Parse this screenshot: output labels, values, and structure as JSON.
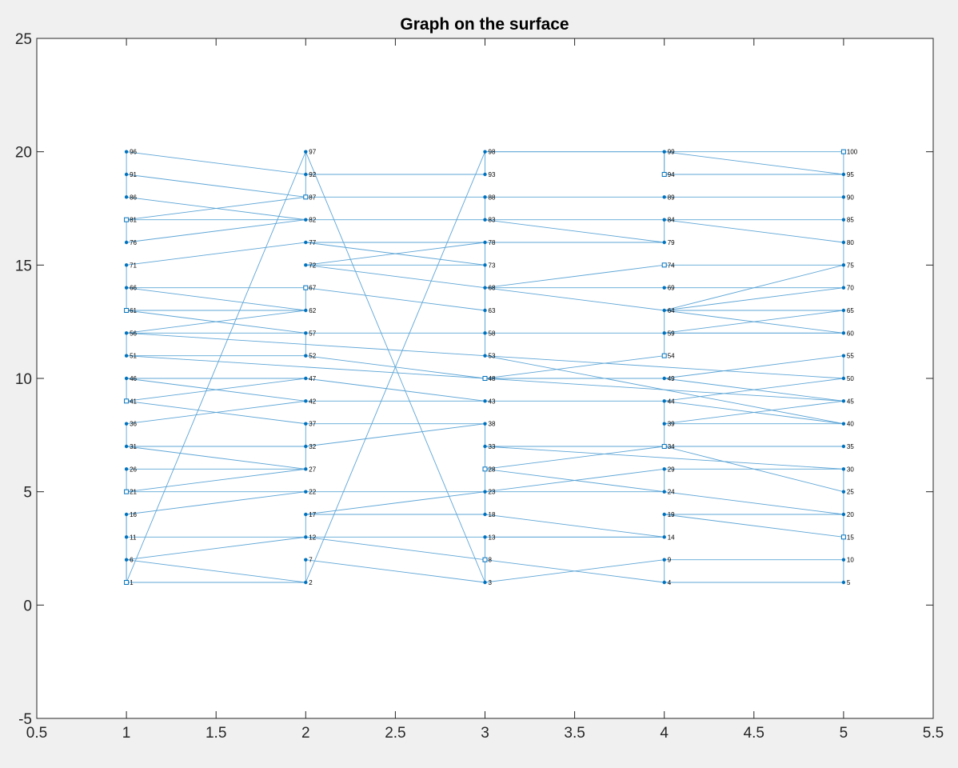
{
  "colors": {
    "figure_background": "#f0f0f0",
    "axes_background": "#ffffff",
    "axis_color": "#262626",
    "edge_color": "#5da5d6",
    "node_color": "#0072bd"
  },
  "chart_data": {
    "type": "scatter",
    "title": "Graph on the surface",
    "xlabel": "",
    "ylabel": "",
    "xlim": [
      0.5,
      5.5
    ],
    "ylim": [
      -5,
      25
    ],
    "xticks": [
      0.5,
      1,
      1.5,
      2,
      2.5,
      3,
      3.5,
      4,
      4.5,
      5,
      5.5
    ],
    "xtick_labels": [
      "0.5",
      "1",
      "1.5",
      "2",
      "2.5",
      "3",
      "3.5",
      "4",
      "4.5",
      "5",
      "5.5"
    ],
    "yticks": [
      -5,
      0,
      5,
      10,
      15,
      20,
      25
    ],
    "ytick_labels": [
      "-5",
      "0",
      "5",
      "10",
      "15",
      "20",
      "25"
    ],
    "grid": false,
    "legend": "none",
    "nodes": [
      {
        "id": 1,
        "x": 1,
        "y": 1,
        "label": "1",
        "marker": "square"
      },
      {
        "id": 2,
        "x": 2,
        "y": 1,
        "label": "2",
        "marker": "dot"
      },
      {
        "id": 3,
        "x": 3,
        "y": 1,
        "label": "3",
        "marker": "dot"
      },
      {
        "id": 4,
        "x": 4,
        "y": 1,
        "label": "4",
        "marker": "dot"
      },
      {
        "id": 5,
        "x": 5,
        "y": 1,
        "label": "5",
        "marker": "dot"
      },
      {
        "id": 6,
        "x": 1,
        "y": 2,
        "label": "6",
        "marker": "dot"
      },
      {
        "id": 7,
        "x": 2,
        "y": 2,
        "label": "7",
        "marker": "dot"
      },
      {
        "id": 8,
        "x": 3,
        "y": 2,
        "label": "8",
        "marker": "square"
      },
      {
        "id": 9,
        "x": 4,
        "y": 2,
        "label": "9",
        "marker": "dot"
      },
      {
        "id": 10,
        "x": 5,
        "y": 2,
        "label": "10",
        "marker": "dot"
      },
      {
        "id": 11,
        "x": 1,
        "y": 3,
        "label": "11",
        "marker": "dot"
      },
      {
        "id": 12,
        "x": 2,
        "y": 3,
        "label": "12",
        "marker": "dot"
      },
      {
        "id": 13,
        "x": 3,
        "y": 3,
        "label": "13",
        "marker": "dot"
      },
      {
        "id": 14,
        "x": 4,
        "y": 3,
        "label": "14",
        "marker": "dot"
      },
      {
        "id": 15,
        "x": 5,
        "y": 3,
        "label": "15",
        "marker": "square"
      },
      {
        "id": 16,
        "x": 1,
        "y": 4,
        "label": "16",
        "marker": "dot"
      },
      {
        "id": 17,
        "x": 2,
        "y": 4,
        "label": "17",
        "marker": "dot"
      },
      {
        "id": 18,
        "x": 3,
        "y": 4,
        "label": "18",
        "marker": "dot"
      },
      {
        "id": 19,
        "x": 4,
        "y": 4,
        "label": "19",
        "marker": "dot"
      },
      {
        "id": 20,
        "x": 5,
        "y": 4,
        "label": "20",
        "marker": "dot"
      },
      {
        "id": 21,
        "x": 1,
        "y": 5,
        "label": "21",
        "marker": "square"
      },
      {
        "id": 22,
        "x": 2,
        "y": 5,
        "label": "22",
        "marker": "dot"
      },
      {
        "id": 23,
        "x": 3,
        "y": 5,
        "label": "23",
        "marker": "dot"
      },
      {
        "id": 24,
        "x": 4,
        "y": 5,
        "label": "24",
        "marker": "dot"
      },
      {
        "id": 25,
        "x": 5,
        "y": 5,
        "label": "25",
        "marker": "dot"
      },
      {
        "id": 26,
        "x": 1,
        "y": 6,
        "label": "26",
        "marker": "dot"
      },
      {
        "id": 27,
        "x": 2,
        "y": 6,
        "label": "27",
        "marker": "dot"
      },
      {
        "id": 28,
        "x": 3,
        "y": 6,
        "label": "28",
        "marker": "square"
      },
      {
        "id": 29,
        "x": 4,
        "y": 6,
        "label": "29",
        "marker": "dot"
      },
      {
        "id": 30,
        "x": 5,
        "y": 6,
        "label": "30",
        "marker": "dot"
      },
      {
        "id": 31,
        "x": 1,
        "y": 7,
        "label": "31",
        "marker": "dot"
      },
      {
        "id": 32,
        "x": 2,
        "y": 7,
        "label": "32",
        "marker": "dot"
      },
      {
        "id": 33,
        "x": 3,
        "y": 7,
        "label": "33",
        "marker": "dot"
      },
      {
        "id": 34,
        "x": 4,
        "y": 7,
        "label": "34",
        "marker": "square"
      },
      {
        "id": 35,
        "x": 5,
        "y": 7,
        "label": "35",
        "marker": "dot"
      },
      {
        "id": 36,
        "x": 1,
        "y": 8,
        "label": "36",
        "marker": "dot"
      },
      {
        "id": 37,
        "x": 2,
        "y": 8,
        "label": "37",
        "marker": "dot"
      },
      {
        "id": 38,
        "x": 3,
        "y": 8,
        "label": "38",
        "marker": "dot"
      },
      {
        "id": 39,
        "x": 4,
        "y": 8,
        "label": "39",
        "marker": "dot"
      },
      {
        "id": 40,
        "x": 5,
        "y": 8,
        "label": "40",
        "marker": "dot"
      },
      {
        "id": 41,
        "x": 1,
        "y": 9,
        "label": "41",
        "marker": "square"
      },
      {
        "id": 42,
        "x": 2,
        "y": 9,
        "label": "42",
        "marker": "dot"
      },
      {
        "id": 43,
        "x": 3,
        "y": 9,
        "label": "43",
        "marker": "dot"
      },
      {
        "id": 44,
        "x": 4,
        "y": 9,
        "label": "44",
        "marker": "dot"
      },
      {
        "id": 45,
        "x": 5,
        "y": 9,
        "label": "45",
        "marker": "dot"
      },
      {
        "id": 46,
        "x": 1,
        "y": 10,
        "label": "46",
        "marker": "dot"
      },
      {
        "id": 47,
        "x": 2,
        "y": 10,
        "label": "47",
        "marker": "dot"
      },
      {
        "id": 48,
        "x": 3,
        "y": 10,
        "label": "48",
        "marker": "square"
      },
      {
        "id": 49,
        "x": 4,
        "y": 10,
        "label": "49",
        "marker": "dot"
      },
      {
        "id": 50,
        "x": 5,
        "y": 10,
        "label": "50",
        "marker": "dot"
      },
      {
        "id": 51,
        "x": 1,
        "y": 11,
        "label": "51",
        "marker": "dot"
      },
      {
        "id": 52,
        "x": 2,
        "y": 11,
        "label": "52",
        "marker": "dot"
      },
      {
        "id": 53,
        "x": 3,
        "y": 11,
        "label": "53",
        "marker": "dot"
      },
      {
        "id": 54,
        "x": 4,
        "y": 11,
        "label": "54",
        "marker": "square"
      },
      {
        "id": 55,
        "x": 5,
        "y": 11,
        "label": "55",
        "marker": "dot"
      },
      {
        "id": 56,
        "x": 1,
        "y": 12,
        "label": "56",
        "marker": "dot"
      },
      {
        "id": 57,
        "x": 2,
        "y": 12,
        "label": "57",
        "marker": "dot"
      },
      {
        "id": 58,
        "x": 3,
        "y": 12,
        "label": "58",
        "marker": "dot"
      },
      {
        "id": 59,
        "x": 4,
        "y": 12,
        "label": "59",
        "marker": "dot"
      },
      {
        "id": 60,
        "x": 5,
        "y": 12,
        "label": "60",
        "marker": "dot"
      },
      {
        "id": 61,
        "x": 1,
        "y": 13,
        "label": "61",
        "marker": "square"
      },
      {
        "id": 62,
        "x": 2,
        "y": 13,
        "label": "62",
        "marker": "dot"
      },
      {
        "id": 63,
        "x": 3,
        "y": 13,
        "label": "63",
        "marker": "dot"
      },
      {
        "id": 64,
        "x": 4,
        "y": 13,
        "label": "64",
        "marker": "dot"
      },
      {
        "id": 65,
        "x": 5,
        "y": 13,
        "label": "65",
        "marker": "dot"
      },
      {
        "id": 66,
        "x": 1,
        "y": 14,
        "label": "66",
        "marker": "dot"
      },
      {
        "id": 67,
        "x": 2,
        "y": 14,
        "label": "67",
        "marker": "square"
      },
      {
        "id": 68,
        "x": 3,
        "y": 14,
        "label": "68",
        "marker": "dot"
      },
      {
        "id": 69,
        "x": 4,
        "y": 14,
        "label": "69",
        "marker": "dot"
      },
      {
        "id": 70,
        "x": 5,
        "y": 14,
        "label": "70",
        "marker": "dot"
      },
      {
        "id": 71,
        "x": 1,
        "y": 15,
        "label": "71",
        "marker": "dot"
      },
      {
        "id": 72,
        "x": 2,
        "y": 15,
        "label": "72",
        "marker": "dot"
      },
      {
        "id": 73,
        "x": 3,
        "y": 15,
        "label": "73",
        "marker": "dot"
      },
      {
        "id": 74,
        "x": 4,
        "y": 15,
        "label": "74",
        "marker": "square"
      },
      {
        "id": 75,
        "x": 5,
        "y": 15,
        "label": "75",
        "marker": "dot"
      },
      {
        "id": 76,
        "x": 1,
        "y": 16,
        "label": "76",
        "marker": "dot"
      },
      {
        "id": 77,
        "x": 2,
        "y": 16,
        "label": "77",
        "marker": "dot"
      },
      {
        "id": 78,
        "x": 3,
        "y": 16,
        "label": "78",
        "marker": "dot"
      },
      {
        "id": 79,
        "x": 4,
        "y": 16,
        "label": "79",
        "marker": "dot"
      },
      {
        "id": 80,
        "x": 5,
        "y": 16,
        "label": "80",
        "marker": "dot"
      },
      {
        "id": 81,
        "x": 1,
        "y": 17,
        "label": "81",
        "marker": "square"
      },
      {
        "id": 82,
        "x": 2,
        "y": 17,
        "label": "82",
        "marker": "dot"
      },
      {
        "id": 83,
        "x": 3,
        "y": 17,
        "label": "83",
        "marker": "dot"
      },
      {
        "id": 84,
        "x": 4,
        "y": 17,
        "label": "84",
        "marker": "dot"
      },
      {
        "id": 85,
        "x": 5,
        "y": 17,
        "label": "85",
        "marker": "dot"
      },
      {
        "id": 86,
        "x": 1,
        "y": 18,
        "label": "86",
        "marker": "dot"
      },
      {
        "id": 87,
        "x": 2,
        "y": 18,
        "label": "87",
        "marker": "square"
      },
      {
        "id": 88,
        "x": 3,
        "y": 18,
        "label": "88",
        "marker": "dot"
      },
      {
        "id": 89,
        "x": 4,
        "y": 18,
        "label": "89",
        "marker": "dot"
      },
      {
        "id": 90,
        "x": 5,
        "y": 18,
        "label": "90",
        "marker": "dot"
      },
      {
        "id": 91,
        "x": 1,
        "y": 19,
        "label": "91",
        "marker": "dot"
      },
      {
        "id": 92,
        "x": 2,
        "y": 19,
        "label": "92",
        "marker": "dot"
      },
      {
        "id": 93,
        "x": 3,
        "y": 19,
        "label": "93",
        "marker": "dot"
      },
      {
        "id": 94,
        "x": 4,
        "y": 19,
        "label": "94",
        "marker": "square"
      },
      {
        "id": 95,
        "x": 5,
        "y": 19,
        "label": "95",
        "marker": "dot"
      },
      {
        "id": 96,
        "x": 1,
        "y": 20,
        "label": "96",
        "marker": "dot"
      },
      {
        "id": 97,
        "x": 2,
        "y": 20,
        "label": "97",
        "marker": "dot"
      },
      {
        "id": 98,
        "x": 3,
        "y": 20,
        "label": "98",
        "marker": "dot"
      },
      {
        "id": 99,
        "x": 4,
        "y": 20,
        "label": "99",
        "marker": "dot"
      },
      {
        "id": 100,
        "x": 5,
        "y": 20,
        "label": "100",
        "marker": "square"
      }
    ],
    "edges": [
      [
        1,
        2
      ],
      [
        1,
        6
      ],
      [
        1,
        97
      ],
      [
        1,
        16
      ],
      [
        2,
        6
      ],
      [
        2,
        7
      ],
      [
        2,
        98
      ],
      [
        3,
        8
      ],
      [
        3,
        9
      ],
      [
        3,
        97
      ],
      [
        3,
        7
      ],
      [
        4,
        5
      ],
      [
        4,
        9
      ],
      [
        4,
        12
      ],
      [
        5,
        10
      ],
      [
        6,
        12
      ],
      [
        8,
        13
      ],
      [
        9,
        10
      ],
      [
        11,
        14
      ],
      [
        11,
        16
      ],
      [
        12,
        17
      ],
      [
        13,
        14
      ],
      [
        14,
        19
      ],
      [
        14,
        18
      ],
      [
        15,
        19
      ],
      [
        15,
        20
      ],
      [
        15,
        10
      ],
      [
        16,
        22
      ],
      [
        17,
        18
      ],
      [
        17,
        29
      ],
      [
        18,
        23
      ],
      [
        19,
        20
      ],
      [
        20,
        28
      ],
      [
        20,
        25
      ],
      [
        21,
        27
      ],
      [
        21,
        22
      ],
      [
        21,
        26
      ],
      [
        22,
        23
      ],
      [
        23,
        24
      ],
      [
        23,
        28
      ],
      [
        24,
        29
      ],
      [
        25,
        34
      ],
      [
        25,
        30
      ],
      [
        26,
        27
      ],
      [
        27,
        31
      ],
      [
        27,
        32
      ],
      [
        28,
        33
      ],
      [
        28,
        34
      ],
      [
        29,
        30
      ],
      [
        30,
        33
      ],
      [
        31,
        32
      ],
      [
        31,
        36
      ],
      [
        32,
        37
      ],
      [
        32,
        38
      ],
      [
        33,
        35
      ],
      [
        33,
        38
      ],
      [
        34,
        35
      ],
      [
        34,
        39
      ],
      [
        36,
        42
      ],
      [
        37,
        38
      ],
      [
        37,
        41
      ],
      [
        39,
        40
      ],
      [
        39,
        44
      ],
      [
        39,
        45
      ],
      [
        40,
        44
      ],
      [
        40,
        53
      ],
      [
        41,
        47
      ],
      [
        41,
        46
      ],
      [
        42,
        43
      ],
      [
        42,
        46
      ],
      [
        43,
        44
      ],
      [
        43,
        47
      ],
      [
        44,
        50
      ],
      [
        45,
        49
      ],
      [
        45,
        51
      ],
      [
        46,
        47
      ],
      [
        48,
        49
      ],
      [
        48,
        52
      ],
      [
        48,
        54
      ],
      [
        49,
        55
      ],
      [
        50,
        55
      ],
      [
        50,
        56
      ],
      [
        51,
        52
      ],
      [
        51,
        56
      ],
      [
        52,
        57
      ],
      [
        53,
        58
      ],
      [
        54,
        64
      ],
      [
        56,
        57
      ],
      [
        56,
        62
      ],
      [
        57,
        61
      ],
      [
        57,
        60
      ],
      [
        58,
        63
      ],
      [
        58,
        68
      ],
      [
        59,
        60
      ],
      [
        59,
        65
      ],
      [
        60,
        65
      ],
      [
        60,
        72
      ],
      [
        61,
        62
      ],
      [
        61,
        66
      ],
      [
        62,
        66
      ],
      [
        62,
        67
      ],
      [
        63,
        67
      ],
      [
        64,
        65
      ],
      [
        64,
        70
      ],
      [
        66,
        67
      ],
      [
        66,
        71
      ],
      [
        68,
        69
      ],
      [
        68,
        73
      ],
      [
        68,
        74
      ],
      [
        69,
        70
      ],
      [
        70,
        75
      ],
      [
        71,
        77
      ],
      [
        72,
        73
      ],
      [
        72,
        78
      ],
      [
        73,
        77
      ],
      [
        73,
        78
      ],
      [
        74,
        75
      ],
      [
        75,
        80
      ],
      [
        75,
        64
      ],
      [
        76,
        82
      ],
      [
        76,
        81
      ],
      [
        77,
        78
      ],
      [
        78,
        79
      ],
      [
        79,
        83
      ],
      [
        79,
        84
      ],
      [
        80,
        85
      ],
      [
        80,
        84
      ],
      [
        81,
        82
      ],
      [
        81,
        87
      ],
      [
        82,
        86
      ],
      [
        82,
        83
      ],
      [
        83,
        84
      ],
      [
        83,
        88
      ],
      [
        85,
        84
      ],
      [
        85,
        90
      ],
      [
        86,
        91
      ],
      [
        87,
        88
      ],
      [
        87,
        91
      ],
      [
        87,
        92
      ],
      [
        88,
        89
      ],
      [
        89,
        90
      ],
      [
        90,
        95
      ],
      [
        92,
        93
      ],
      [
        92,
        97
      ],
      [
        92,
        96
      ],
      [
        93,
        98
      ],
      [
        94,
        95
      ],
      [
        94,
        99
      ],
      [
        95,
        99
      ],
      [
        95,
        100
      ],
      [
        96,
        91
      ],
      [
        98,
        99
      ],
      [
        98,
        100
      ],
      [
        99,
        94
      ]
    ]
  }
}
